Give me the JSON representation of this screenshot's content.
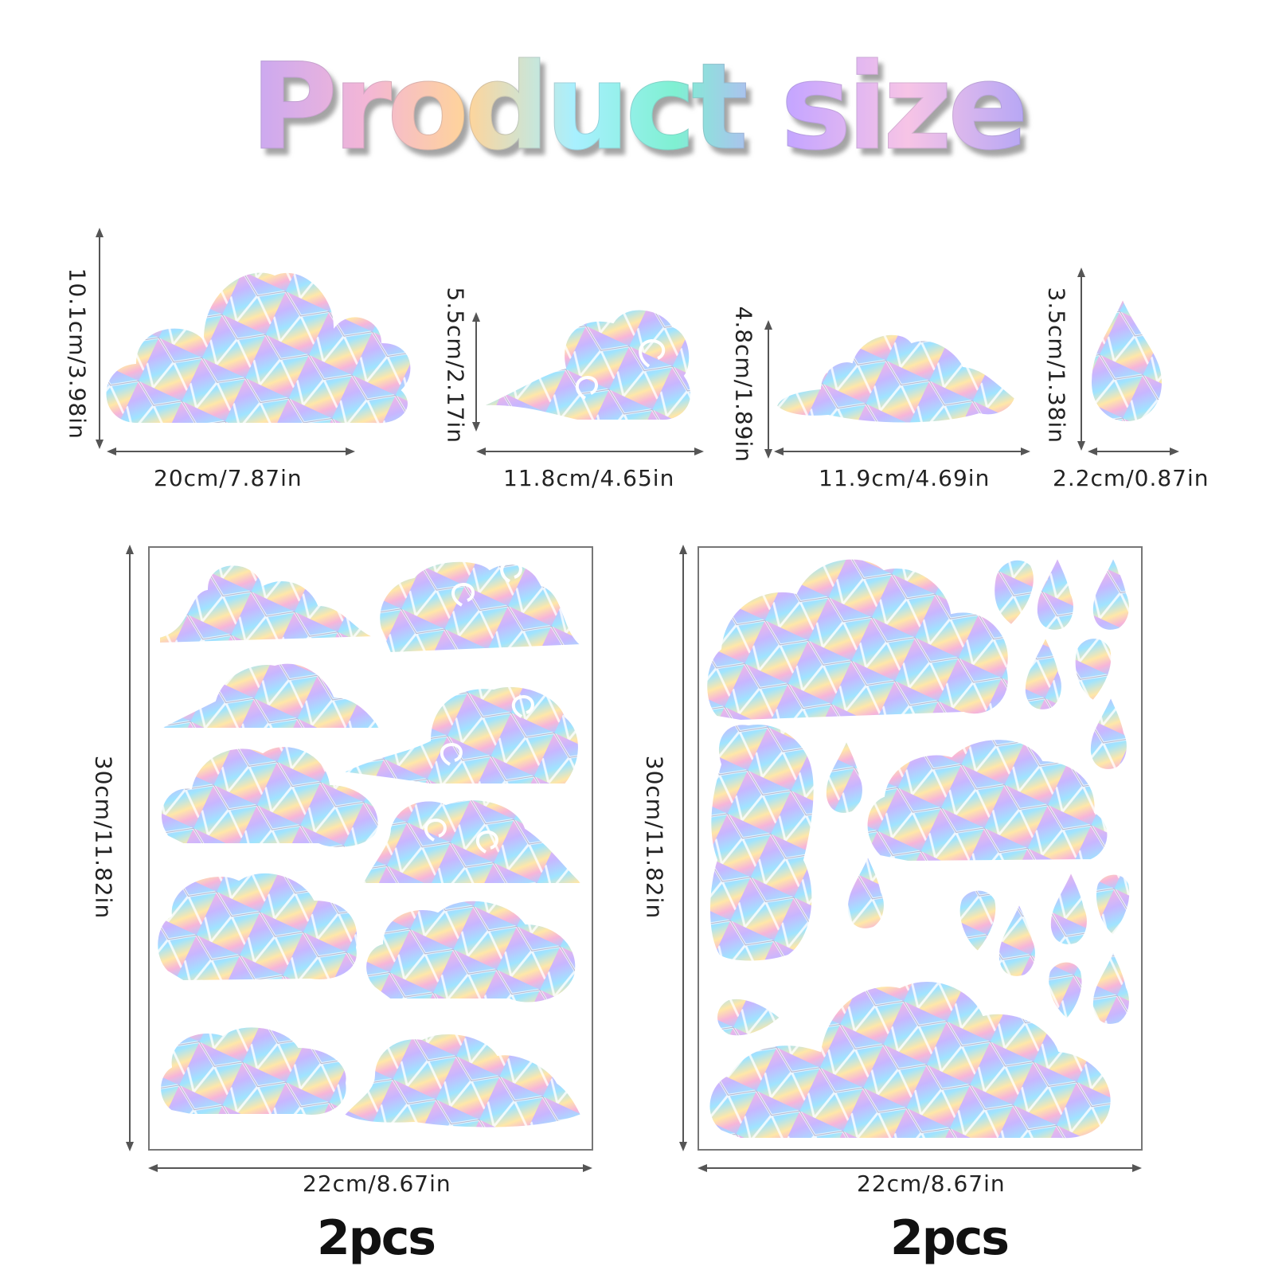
{
  "title": "Product size",
  "items": [
    {
      "width_label": "20cm/7.87in",
      "height_label": "10.1cm/3.98in"
    },
    {
      "width_label": "11.8cm/4.65in",
      "height_label": "5.5cm/2.17in"
    },
    {
      "width_label": "11.9cm/4.69in",
      "height_label": "4.8cm/1.89in"
    },
    {
      "width_label": "2.2cm/0.87in",
      "height_label": "3.5cm/1.38in"
    }
  ],
  "sheets": [
    {
      "width_label": "22cm/8.67in",
      "height_label": "30cm/11.82in",
      "quantity": "2pcs"
    },
    {
      "width_label": "22cm/8.67in",
      "height_label": "30cm/11.82in",
      "quantity": "2pcs"
    }
  ],
  "colors": {
    "holo_pink": "#f3b6e3",
    "holo_blue": "#9fe4ff",
    "holo_purple": "#c8b6ff",
    "holo_yellow": "#ffe7a8",
    "arrow": "#555555",
    "sheet_border": "#777777"
  }
}
